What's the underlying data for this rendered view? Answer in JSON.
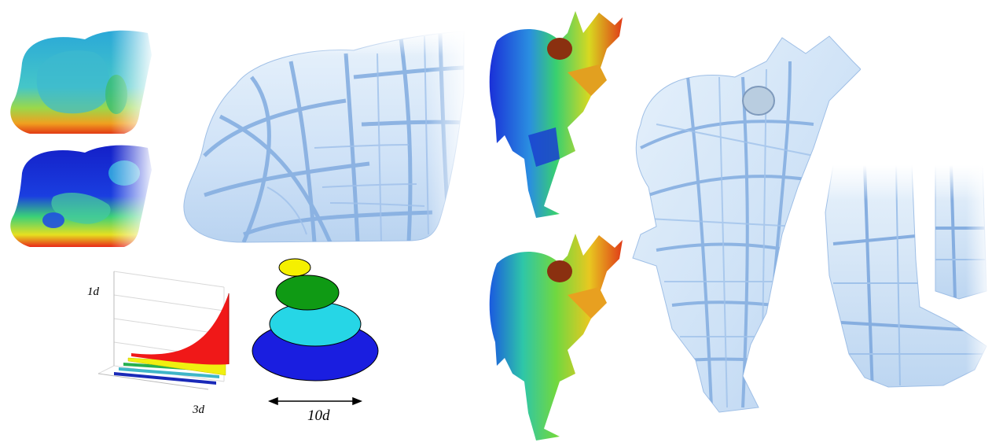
{
  "labels": {
    "z_axis": "1d",
    "x_axis": "3d",
    "width": "10d"
  },
  "colors": {
    "patch_fill": "#cfe2f7",
    "patch_line": "#7fa6da",
    "heat_low": "#1a20c8",
    "heat_mid": "#2fd06a",
    "heat_high": "#e02a10",
    "ring_blue": "#1a1ee0",
    "ring_cyan": "#26d6e6",
    "ring_green": "#0f9a14",
    "ring_yellow": "#f5f000",
    "curve_red": "#f01818",
    "curve_yellow": "#f0ef10",
    "curve_green": "#26b050",
    "curve_cyan": "#3fb6c8",
    "curve_blue": "#1a2ab8"
  },
  "icons": [
    "bunny-heatmap-top",
    "bunny-heatmap-bottom",
    "bunny-patch-layout",
    "armadillo-heatmap-top",
    "armadillo-heatmap-bottom",
    "armadillo-patch-layout",
    "armadillo-leg-closeup"
  ]
}
